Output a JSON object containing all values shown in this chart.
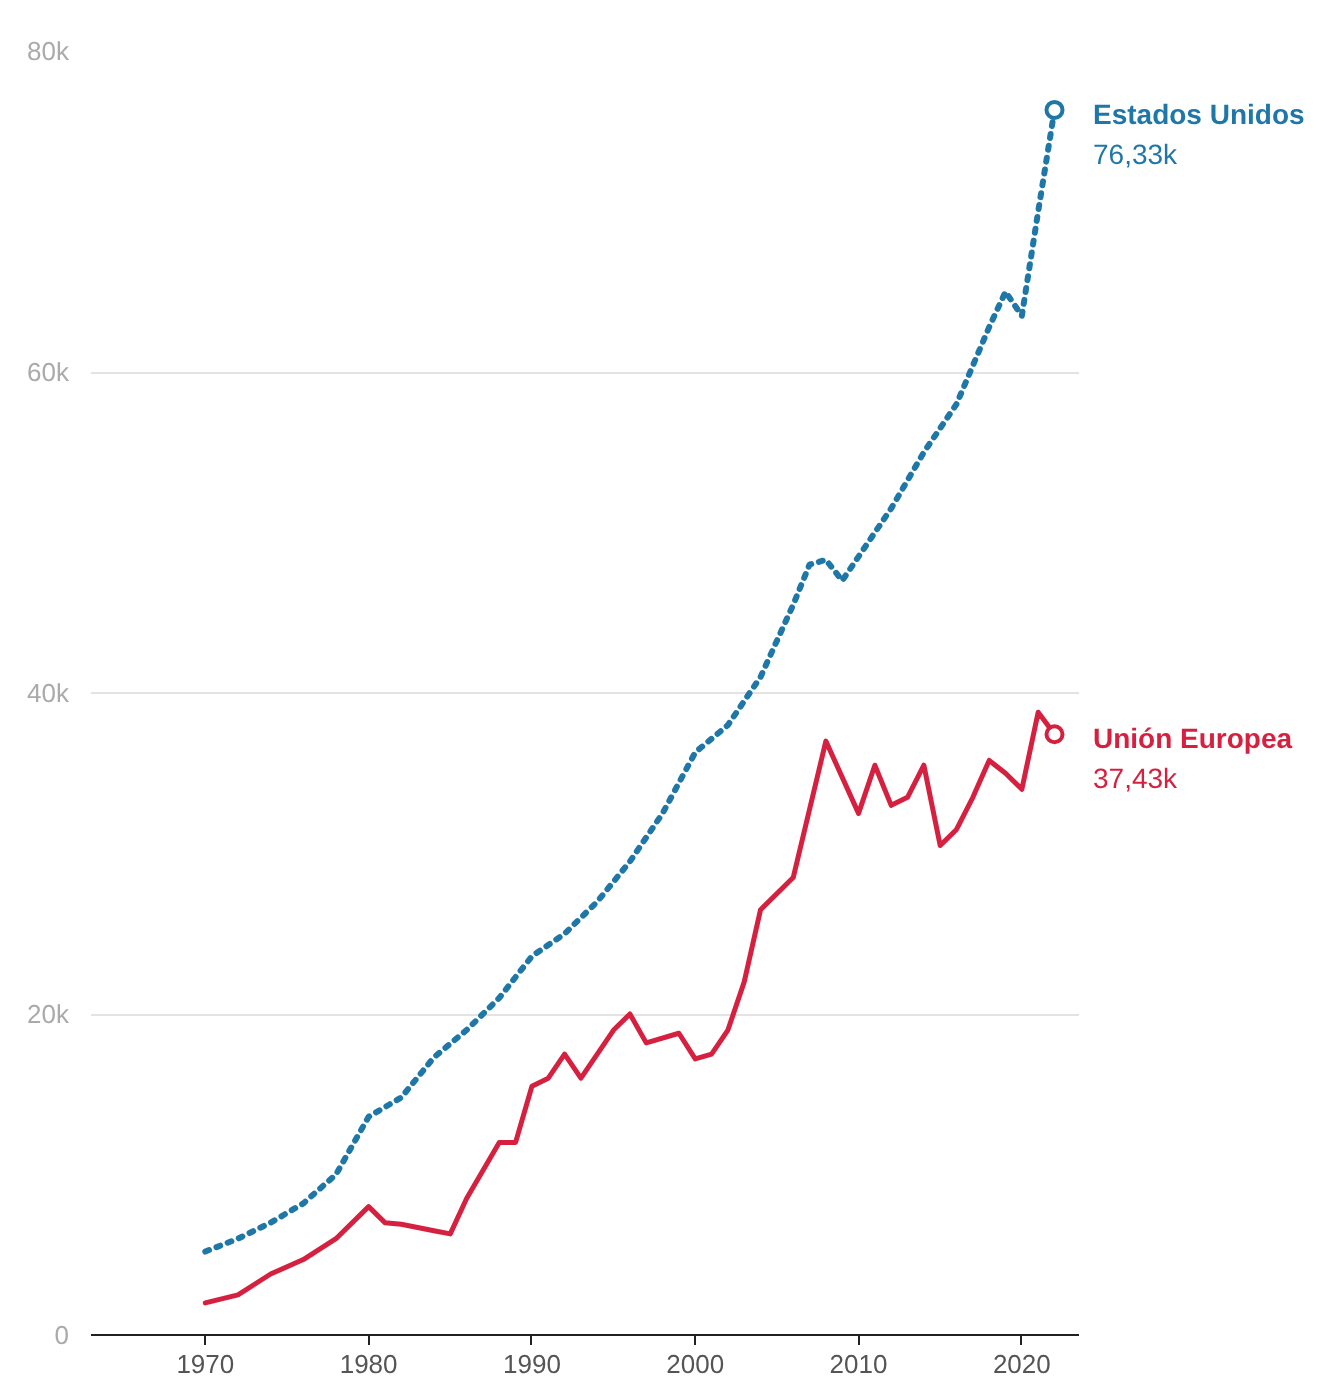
{
  "chart_data": {
    "type": "line",
    "x": [
      1970,
      1972,
      1974,
      1976,
      1978,
      1980,
      1982,
      1984,
      1986,
      1988,
      1990,
      1992,
      1994,
      1996,
      1998,
      2000,
      2002,
      2004,
      2006,
      2007,
      2008,
      2009,
      2010,
      2012,
      2014,
      2016,
      2018,
      2019,
      2020,
      2021,
      2022
    ],
    "series": [
      {
        "name": "Estados Unidos",
        "color": "#1f77a8",
        "line_style": "dotted",
        "values": [
          5.2,
          6.0,
          7.0,
          8.2,
          10.0,
          13.6,
          14.8,
          17.3,
          19.0,
          21.0,
          23.6,
          25.0,
          27.0,
          29.5,
          32.5,
          36.3,
          38.0,
          41.0,
          45.5,
          48.0,
          48.3,
          47.0,
          48.5,
          51.5,
          55.0,
          58.0,
          62.8,
          65.0,
          63.5,
          70.0,
          76.33
        ],
        "value_labels": [
          null,
          null,
          null,
          null,
          null,
          null,
          null,
          null,
          null,
          null,
          null,
          null,
          null,
          null,
          null,
          null,
          null,
          null,
          null,
          null,
          null,
          null,
          null,
          null,
          null,
          null,
          null,
          null,
          null,
          null,
          "76,33k"
        ]
      },
      {
        "name": "Unión Europea",
        "color": "#d6203f",
        "line_style": "solid",
        "x": [
          1970,
          1972,
          1974,
          1976,
          1978,
          1980,
          1981,
          1982,
          1984,
          1985,
          1986,
          1988,
          1989,
          1990,
          1991,
          1992,
          1993,
          1995,
          1996,
          1997,
          1999,
          2000,
          2001,
          2002,
          2003,
          2004,
          2006,
          2008,
          2010,
          2011,
          2012,
          2013,
          2014,
          2015,
          2016,
          2017,
          2018,
          2019,
          2020,
          2021,
          2022
        ],
        "values": [
          2.0,
          2.5,
          3.8,
          4.7,
          6.0,
          8.0,
          7.0,
          6.9,
          6.5,
          6.3,
          8.5,
          12.0,
          12.0,
          15.5,
          16.0,
          17.5,
          16.0,
          19.0,
          20.0,
          18.2,
          18.8,
          17.2,
          17.5,
          19.0,
          22.0,
          26.5,
          28.5,
          37.0,
          32.5,
          35.5,
          33.0,
          33.5,
          35.5,
          30.5,
          31.5,
          33.5,
          35.8,
          35.0,
          34.0,
          38.8,
          37.43
        ],
        "value_labels": [
          null,
          null,
          null,
          null,
          null,
          null,
          null,
          null,
          null,
          null,
          null,
          null,
          null,
          null,
          null,
          null,
          null,
          null,
          null,
          null,
          null,
          null,
          null,
          null,
          null,
          null,
          null,
          null,
          null,
          null,
          null,
          null,
          null,
          null,
          null,
          null,
          null,
          null,
          null,
          null,
          "37,43k"
        ]
      }
    ],
    "xlim": [
      1963,
      2023.5
    ],
    "xticks": [
      1970,
      1980,
      1990,
      2000,
      2010,
      2020
    ],
    "ylim": [
      0,
      80
    ],
    "yticks": [
      {
        "value": 0,
        "label": "0"
      },
      {
        "value": 20,
        "label": "20k"
      },
      {
        "value": 40,
        "label": "40k"
      },
      {
        "value": 60,
        "label": "60k"
      },
      {
        "value": 80,
        "label": "80k"
      }
    ],
    "grid": "y"
  }
}
